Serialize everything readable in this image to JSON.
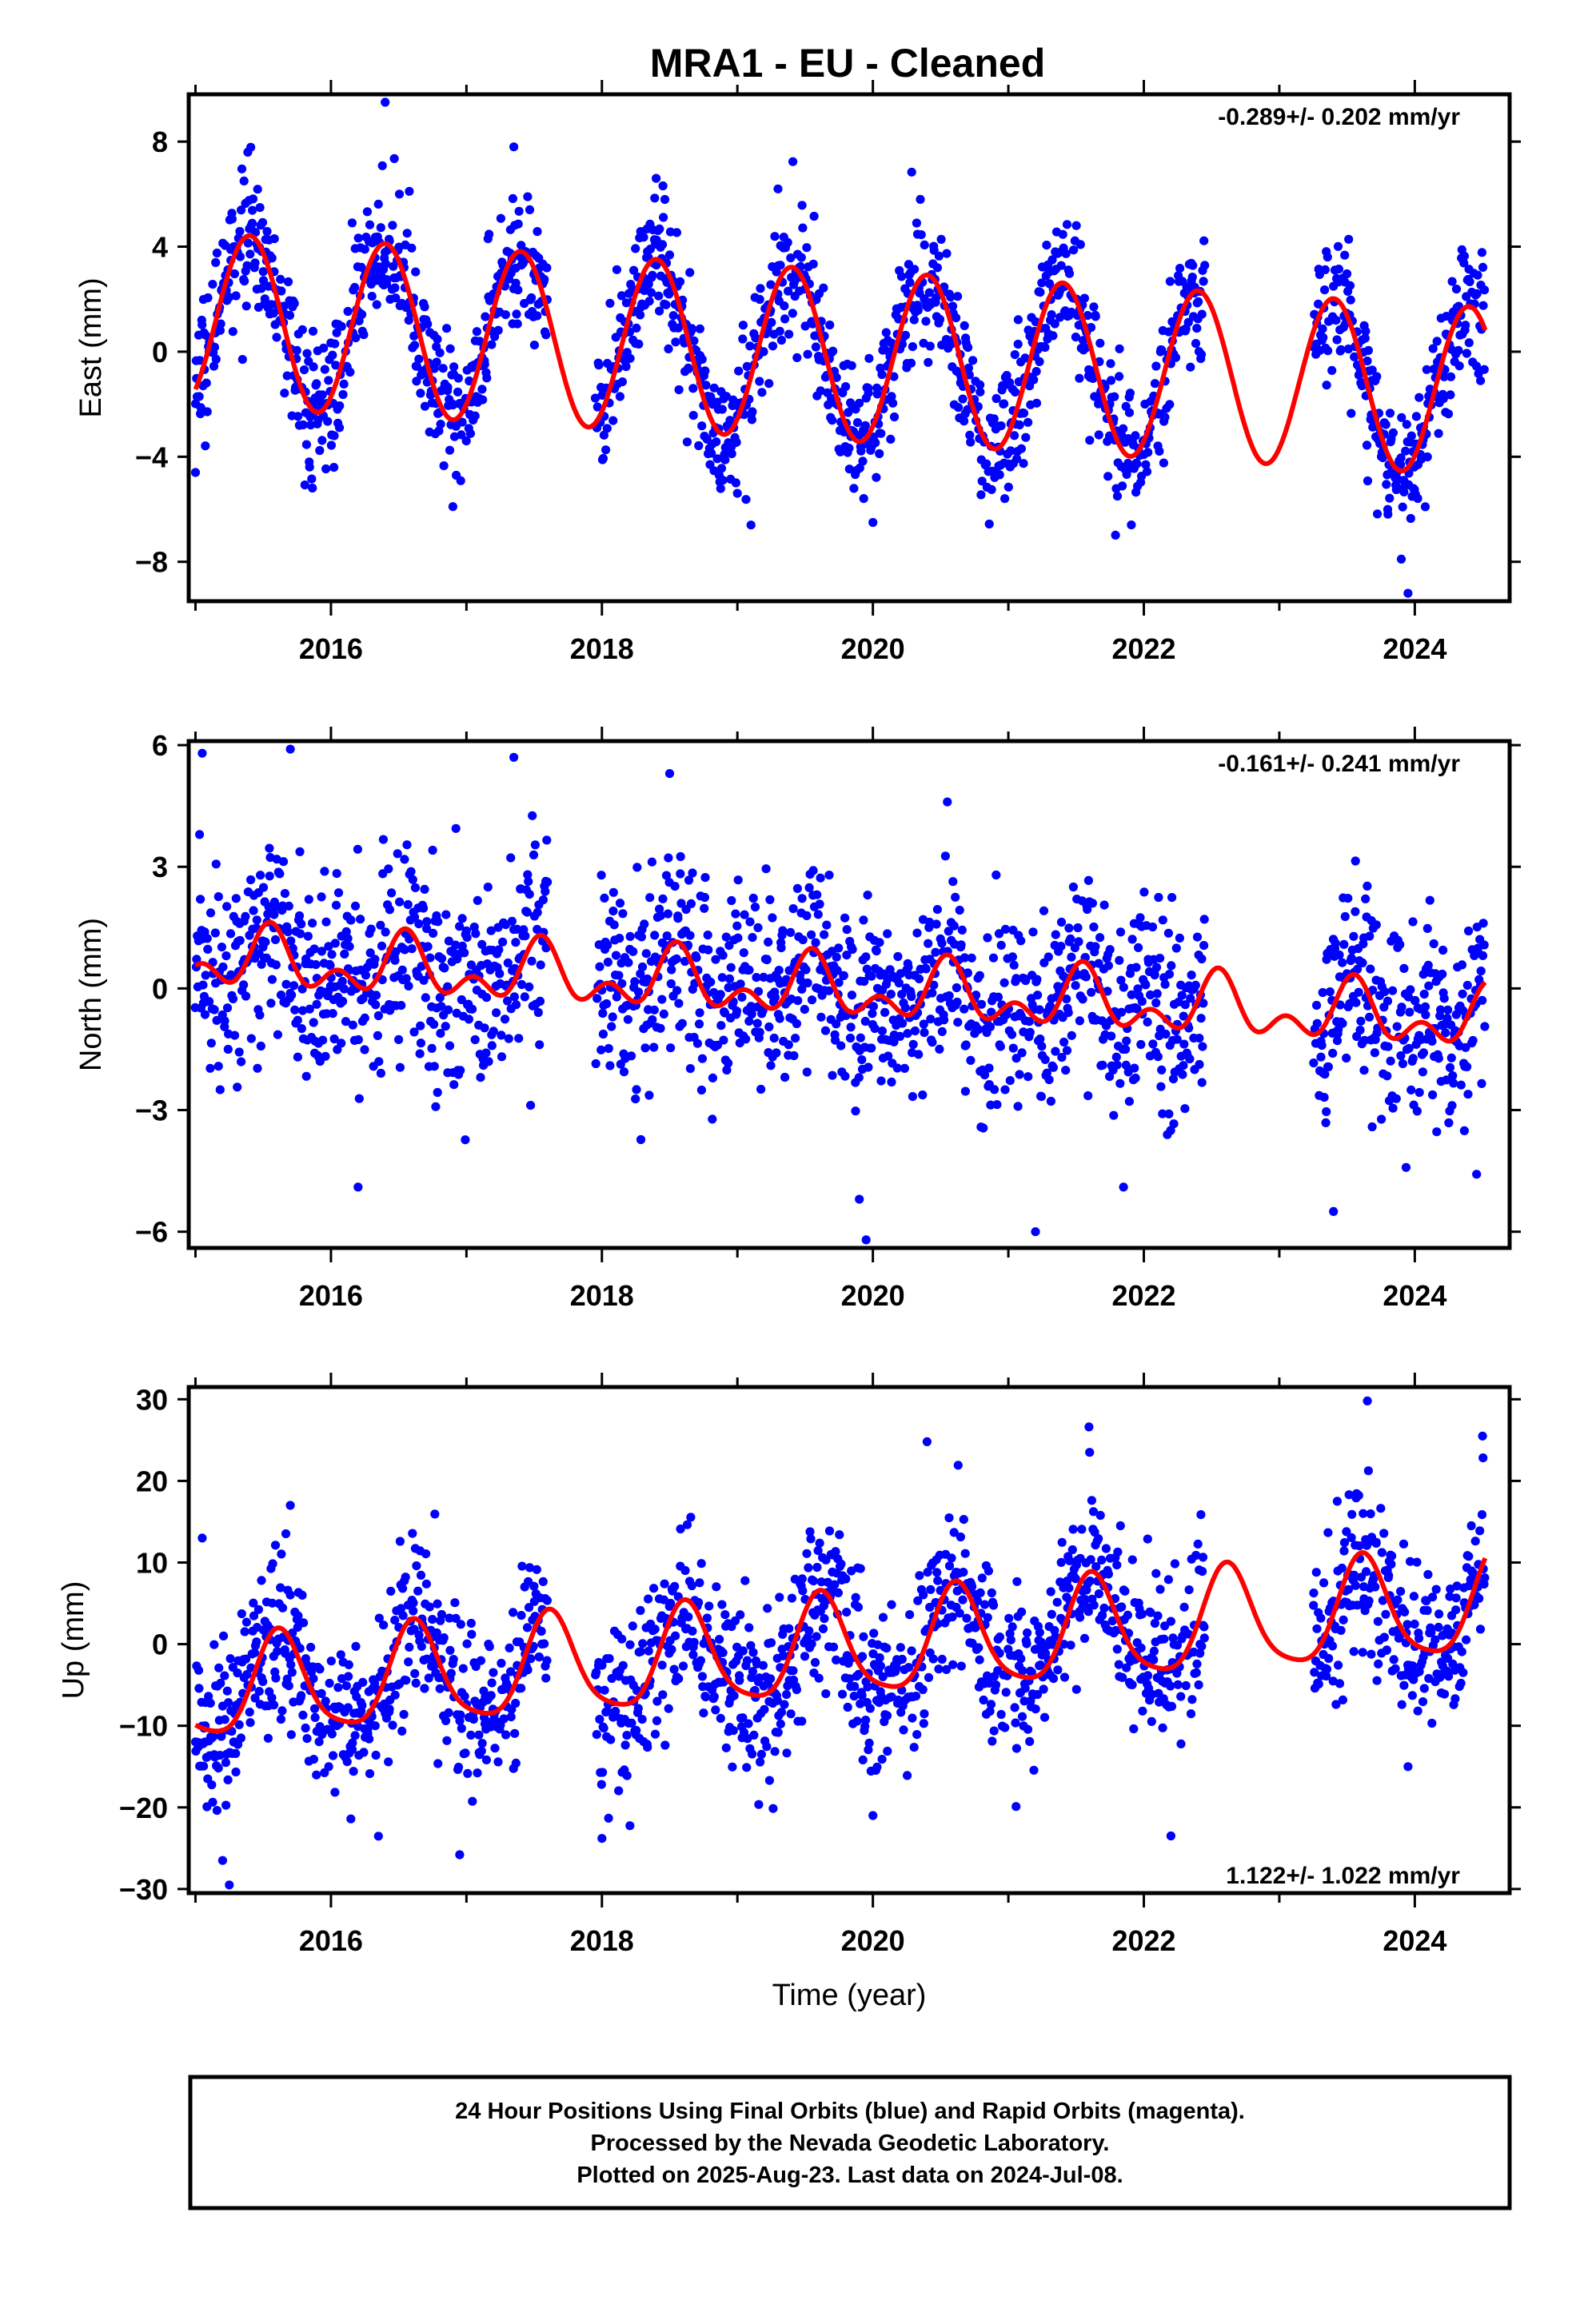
{
  "title": "MRA1  - EU - Cleaned",
  "footer": {
    "line1": "24 Hour Positions Using Final Orbits (blue) and Rapid Orbits (magenta).",
    "line2": "Processed by the Nevada Geodetic Laboratory.",
    "line3": "Plotted on 2025-Aug-23. Last data on 2024-Jul-08."
  },
  "colors": {
    "observations": "#0000ff",
    "model": "#ff0000",
    "frame": "#000000"
  },
  "chart_data": [
    {
      "type": "scatter",
      "id": "east",
      "ylabel": "East (mm)",
      "xlabel": "",
      "rate_label": "-0.289+/- 0.202 mm/yr",
      "rate_position": "top-right",
      "xlim": [
        2014.95,
        2024.7
      ],
      "ylim": [
        -9.5,
        9.8
      ],
      "xticks": [
        2016,
        2018,
        2020,
        2022,
        2024
      ],
      "yticks": [
        -8,
        -4,
        0,
        4,
        8
      ],
      "ytick_labels": [
        "−8",
        "−4",
        "0",
        "4",
        "8"
      ],
      "model": {
        "a0": -0.15,
        "rate": -0.289,
        "t0": 2019.8,
        "amp_start": 3.3,
        "amp_end": 3.2,
        "peak_phase": 0.4,
        "semi_amp": 0.0,
        "semi_phase": 0.0
      },
      "noise": 1.3,
      "point_count": 2100,
      "gaps": [
        [
          2017.6,
          2017.95
        ],
        [
          2022.45,
          2023.25
        ]
      ],
      "outliers": [
        [
          2016.4,
          9.5
        ],
        [
          2017.35,
          7.8
        ],
        [
          2018.4,
          6.6
        ],
        [
          2019.3,
          6.2
        ],
        [
          2020.35,
          5.8
        ],
        [
          2023.95,
          -9.2
        ],
        [
          2023.9,
          -7.9
        ],
        [
          2019.1,
          -6.6
        ],
        [
          2020.0,
          -6.5
        ],
        [
          2016.9,
          -5.9
        ],
        [
          2015.0,
          -4.6
        ]
      ]
    },
    {
      "type": "scatter",
      "id": "north",
      "ylabel": "North (mm)",
      "xlabel": "",
      "rate_label": "-0.161+/- 0.241 mm/yr",
      "rate_position": "top-right",
      "xlim": [
        2014.95,
        2024.7
      ],
      "ylim": [
        -6.4,
        6.1
      ],
      "xticks": [
        2016,
        2018,
        2020,
        2022,
        2024
      ],
      "yticks": [
        -6,
        -3,
        0,
        3,
        6
      ],
      "ytick_labels": [
        "−6",
        "−3",
        "0",
        "3",
        "6"
      ],
      "model": {
        "a0": -0.05,
        "rate": -0.161,
        "t0": 2019.8,
        "amp_start": 0.55,
        "amp_end": 0.55,
        "peak_phase": 0.55,
        "semi_amp": 0.45,
        "semi_phase": 0.05
      },
      "noise": 1.25,
      "point_count": 2100,
      "gaps": [
        [
          2017.6,
          2017.95
        ],
        [
          2022.45,
          2023.25
        ]
      ],
      "outliers": [
        [
          2015.05,
          5.8
        ],
        [
          2015.7,
          5.9
        ],
        [
          2017.35,
          5.7
        ],
        [
          2018.5,
          5.3
        ],
        [
          2020.55,
          4.6
        ],
        [
          2019.95,
          -6.2
        ],
        [
          2021.2,
          -6.0
        ],
        [
          2016.2,
          -4.9
        ],
        [
          2023.4,
          -5.5
        ],
        [
          2021.85,
          -4.9
        ],
        [
          2019.9,
          -5.2
        ]
      ]
    },
    {
      "type": "scatter",
      "id": "up",
      "ylabel": "Up (mm)",
      "xlabel": "Time (year)",
      "rate_label": "1.122+/- 1.022 mm/yr",
      "rate_position": "bottom-right",
      "xlim": [
        2014.95,
        2024.7
      ],
      "ylim": [
        -30.5,
        31.5
      ],
      "xticks": [
        2016,
        2018,
        2020,
        2022,
        2024
      ],
      "yticks": [
        -30,
        -20,
        -10,
        0,
        10,
        20,
        30
      ],
      "ytick_labels": [
        "−30",
        "−20",
        "−10",
        "0",
        "10",
        "20",
        "30"
      ],
      "model": {
        "a0": -0.5,
        "rate": 1.122,
        "t0": 2019.8,
        "amp_start": 6.0,
        "amp_end": 6.3,
        "peak_phase": 0.62,
        "semi_amp": 1.2,
        "semi_phase": 0.1
      },
      "noise": 5.2,
      "point_count": 2100,
      "gaps": [
        [
          2017.6,
          2017.95
        ],
        [
          2022.45,
          2023.25
        ]
      ],
      "outliers": [
        [
          2015.25,
          -29.5
        ],
        [
          2015.2,
          -26.5
        ],
        [
          2016.95,
          -25.8
        ],
        [
          2018.0,
          -23.8
        ],
        [
          2022.2,
          -23.5
        ],
        [
          2020.4,
          24.8
        ],
        [
          2021.6,
          23.5
        ],
        [
          2023.65,
          29.8
        ],
        [
          2024.5,
          25.5
        ],
        [
          2015.05,
          13.0
        ],
        [
          2015.7,
          17.0
        ],
        [
          2020.0,
          -21.0
        ],
        [
          2023.95,
          -15.0
        ]
      ]
    }
  ]
}
